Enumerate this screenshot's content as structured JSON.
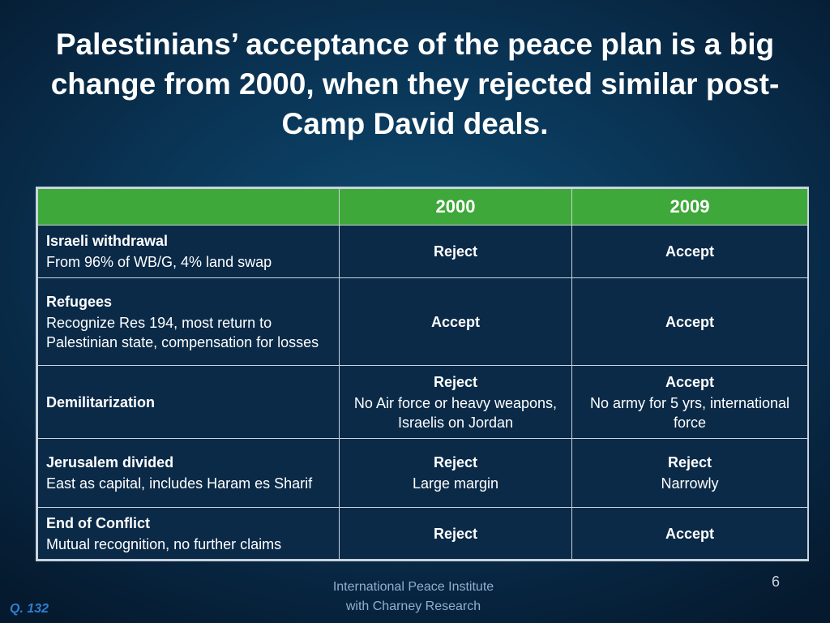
{
  "slide": {
    "title": "Palestinians’ acceptance of the peace plan is a big change from 2000, when they rejected similar post-Camp David deals.",
    "page_number": "6",
    "question_ref": "Q. 132",
    "footer": {
      "line1": "International Peace Institute",
      "line2": "with Charney Research"
    }
  },
  "table": {
    "headers": [
      "",
      "2000",
      "2009"
    ],
    "rows": [
      {
        "title": "Israeli withdrawal",
        "desc": "From 96% of WB/G, 4% land swap",
        "y2000": {
          "main": "Reject",
          "detail": ""
        },
        "y2009": {
          "main": "Accept",
          "detail": ""
        }
      },
      {
        "title": "Refugees",
        "desc": "Recognize Res 194, most return to Palestinian state, compensation for losses",
        "y2000": {
          "main": "Accept",
          "detail": ""
        },
        "y2009": {
          "main": "Accept",
          "detail": ""
        }
      },
      {
        "title": "Demilitarization",
        "desc": "",
        "y2000": {
          "main": "Reject",
          "detail": "No Air force or heavy weapons, Israelis on Jordan"
        },
        "y2009": {
          "main": "Accept",
          "detail": "No army for 5 yrs, international force"
        }
      },
      {
        "title": "Jerusalem divided",
        "desc": "East as capital, includes Haram es Sharif",
        "y2000": {
          "main": "Reject",
          "detail": "Large margin"
        },
        "y2009": {
          "main": "Reject",
          "detail": "Narrowly"
        }
      },
      {
        "title": "End of Conflict",
        "desc": "Mutual recognition, no further claims",
        "y2000": {
          "main": "Reject",
          "detail": ""
        },
        "y2009": {
          "main": "Accept",
          "detail": ""
        }
      }
    ]
  },
  "colors": {
    "header_green": "#3fa83a",
    "cell_background": "#0a2a48",
    "border": "#c9d3dd",
    "footer_text": "#8fb0cf",
    "question_ref": "#2f7fd1"
  }
}
